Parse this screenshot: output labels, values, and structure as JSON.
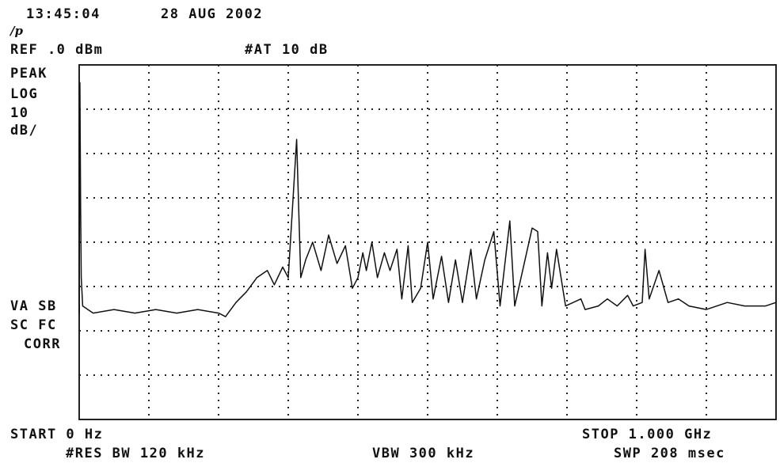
{
  "header": {
    "timestamp": "13:45:04",
    "date": "28 AUG 2002",
    "ref_level": "REF .0 dBm",
    "attenuation": "#AT 10 dB"
  },
  "left_panel": {
    "detector": "PEAK",
    "scale_type": "LOG",
    "scale_value": "10",
    "scale_unit": "dB/",
    "va_sb": "VA SB",
    "sc_fc": "SC FC",
    "corr": "CORR"
  },
  "footer": {
    "start": "START 0 Hz",
    "stop": "STOP 1.000 GHz",
    "rbw": "#RES BW 120 kHz",
    "vbw": "VBW 300 kHz",
    "sweep": "SWP 208 msec"
  },
  "colors": {
    "trace": "#111111",
    "grid": "#222222",
    "background": "#ffffff"
  },
  "chart_data": {
    "type": "line",
    "title": "",
    "xlabel": "",
    "ylabel": "",
    "xlim": [
      0,
      1000
    ],
    "ylim": [
      -100,
      0
    ],
    "grid": true,
    "x_unit": "MHz",
    "y_unit": "dBm",
    "series": [
      {
        "values": [
          [
            0,
            -70
          ],
          [
            1,
            -5
          ],
          [
            2,
            -40
          ],
          [
            3,
            -60
          ],
          [
            5,
            -68
          ],
          [
            20,
            -70
          ],
          [
            50,
            -69
          ],
          [
            80,
            -70
          ],
          [
            110,
            -69
          ],
          [
            140,
            -70
          ],
          [
            170,
            -69
          ],
          [
            200,
            -70
          ],
          [
            210,
            -71
          ],
          [
            225,
            -67
          ],
          [
            240,
            -64
          ],
          [
            255,
            -60
          ],
          [
            270,
            -58
          ],
          [
            280,
            -62
          ],
          [
            292,
            -57
          ],
          [
            300,
            -60
          ],
          [
            312,
            -21
          ],
          [
            318,
            -60
          ],
          [
            325,
            -55
          ],
          [
            335,
            -50
          ],
          [
            347,
            -58
          ],
          [
            358,
            -48
          ],
          [
            370,
            -56
          ],
          [
            382,
            -51
          ],
          [
            392,
            -63
          ],
          [
            400,
            -60
          ],
          [
            407,
            -53
          ],
          [
            412,
            -58
          ],
          [
            420,
            -50
          ],
          [
            428,
            -60
          ],
          [
            438,
            -53
          ],
          [
            446,
            -58
          ],
          [
            456,
            -52
          ],
          [
            463,
            -66
          ],
          [
            472,
            -51
          ],
          [
            478,
            -67
          ],
          [
            490,
            -63
          ],
          [
            500,
            -50
          ],
          [
            508,
            -66
          ],
          [
            520,
            -54
          ],
          [
            530,
            -67
          ],
          [
            540,
            -55
          ],
          [
            550,
            -67
          ],
          [
            562,
            -52
          ],
          [
            570,
            -66
          ],
          [
            582,
            -55
          ],
          [
            595,
            -47
          ],
          [
            604,
            -68
          ],
          [
            618,
            -44
          ],
          [
            625,
            -68
          ],
          [
            650,
            -46
          ],
          [
            658,
            -47
          ],
          [
            664,
            -68
          ],
          [
            672,
            -53
          ],
          [
            678,
            -63
          ],
          [
            685,
            -52
          ],
          [
            698,
            -68
          ],
          [
            720,
            -66
          ],
          [
            726,
            -69
          ],
          [
            745,
            -68
          ],
          [
            758,
            -66
          ],
          [
            772,
            -68
          ],
          [
            787,
            -65
          ],
          [
            795,
            -68
          ],
          [
            808,
            -67
          ],
          [
            812,
            -52
          ],
          [
            818,
            -66
          ],
          [
            832,
            -58
          ],
          [
            845,
            -67
          ],
          [
            860,
            -66
          ],
          [
            875,
            -68
          ],
          [
            900,
            -69
          ],
          [
            930,
            -67
          ],
          [
            955,
            -68
          ],
          [
            985,
            -68
          ],
          [
            1000,
            -67
          ]
        ]
      }
    ]
  }
}
